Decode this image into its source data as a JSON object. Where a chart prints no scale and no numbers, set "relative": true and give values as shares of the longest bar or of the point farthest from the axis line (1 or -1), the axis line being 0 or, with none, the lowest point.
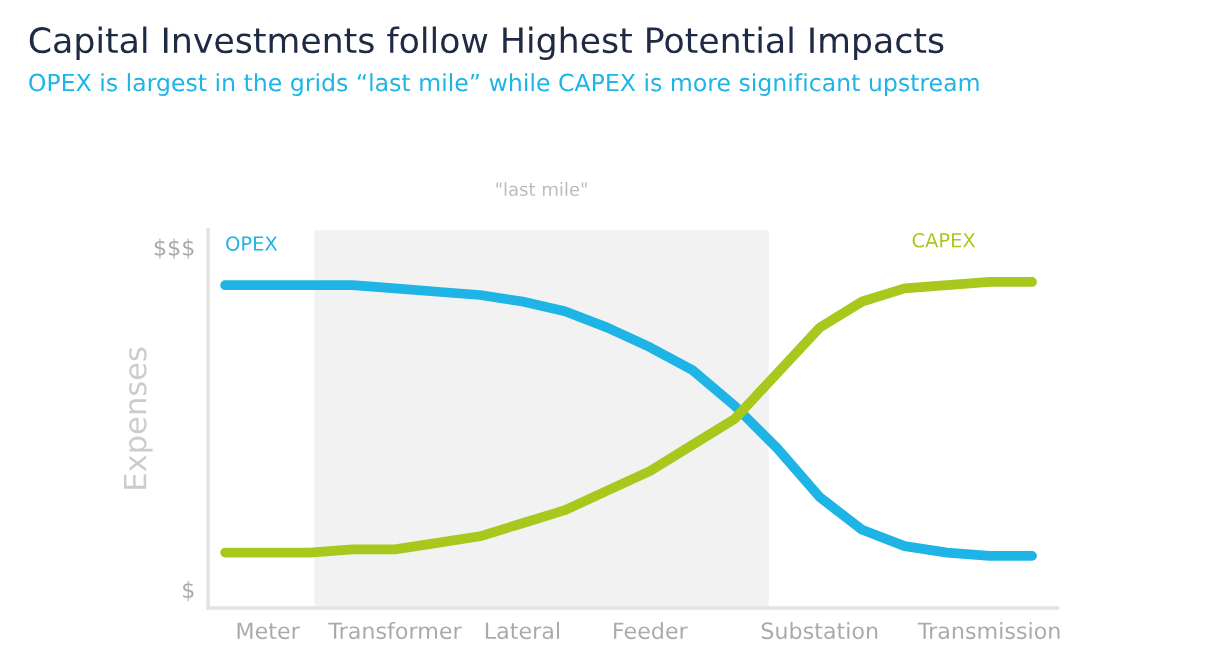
{
  "chart_data": {
    "type": "line",
    "title": "Capital Investments follow Highest Potential Impacts",
    "subtitle": "OPEX is largest in the grids “last mile” while CAPEX is more significant upstream",
    "ylabel": "Expenses",
    "relative": true,
    "categories": [
      null,
      "Meter",
      null,
      null,
      "Transformer",
      null,
      null,
      "Lateral",
      null,
      null,
      "Feeder",
      null,
      null,
      null,
      "Substation",
      null,
      null,
      null,
      "Transmission",
      null
    ],
    "annotations": [
      "$",
      "$$$",
      "\"last mile\""
    ],
    "grid": false,
    "legend": false,
    "marker": "none",
    "line_style": "solid",
    "series": [
      {
        "name": "OPEX",
        "color": "#1eb4e6",
        "values": [
          0.99,
          0.99,
          0.99,
          0.99,
          0.98,
          0.97,
          0.96,
          0.94,
          0.91,
          0.86,
          0.8,
          0.73,
          0.62,
          0.49,
          0.34,
          0.24,
          0.19,
          0.17,
          0.16,
          0.16
        ]
      },
      {
        "name": "CAPEX",
        "color": "#a8c81e",
        "values": [
          0.17,
          0.17,
          0.17,
          0.18,
          0.18,
          0.2,
          0.22,
          0.26,
          0.3,
          0.36,
          0.42,
          0.5,
          0.58,
          0.72,
          0.86,
          0.94,
          0.98,
          0.99,
          1.0,
          1.0
        ]
      }
    ]
  }
}
